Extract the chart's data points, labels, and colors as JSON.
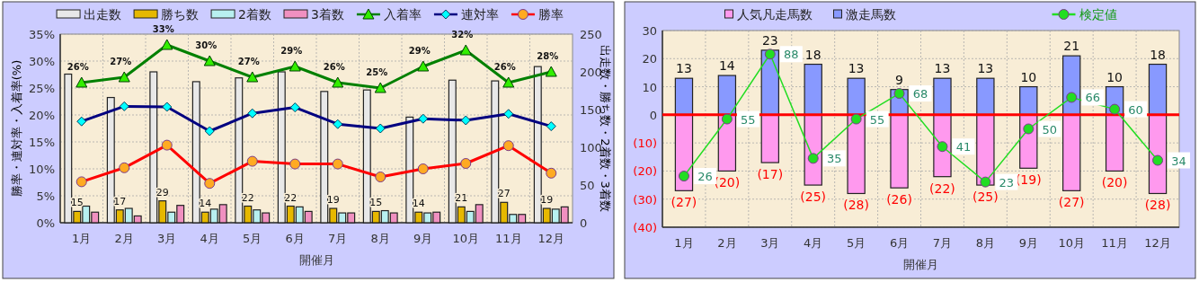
{
  "chart_data": [
    {
      "type": "bar",
      "categories": [
        "1月",
        "2月",
        "3月",
        "4月",
        "5月",
        "6月",
        "7月",
        "8月",
        "9月",
        "10月",
        "11月",
        "12月"
      ],
      "xlabel": "開催月",
      "ylabel": "勝率・連対率・入着率(%)",
      "y2label": "出走数・勝ち数・2着数・3着数",
      "ylim": [
        0,
        35
      ],
      "yticks": [
        {
          "value": 0,
          "label": "0%"
        },
        {
          "value": 5,
          "label": "5%"
        },
        {
          "value": 10,
          "label": "10%"
        },
        {
          "value": 15,
          "label": "15%"
        },
        {
          "value": 20,
          "label": "20%"
        },
        {
          "value": 25,
          "label": "25%"
        },
        {
          "value": 30,
          "label": "30%"
        },
        {
          "value": 35,
          "label": "35%"
        }
      ],
      "y2lim": [
        0,
        250
      ],
      "y2ticks": [
        0,
        50,
        100,
        150,
        200,
        250
      ],
      "grid": true,
      "legend": "top",
      "series": [
        {
          "name": "出走数",
          "axis": "y2",
          "color": "#e8e8e8",
          "values": [
            197,
            166,
            200,
            187,
            192,
            200,
            174,
            176,
            140,
            189,
            188,
            207
          ]
        },
        {
          "name": "勝ち数",
          "axis": "y2",
          "color": "#e6b800",
          "values": [
            15,
            17,
            29,
            14,
            22,
            22,
            19,
            15,
            14,
            21,
            27,
            19
          ],
          "value_labels": [
            "15",
            "17",
            "29",
            "14",
            "22",
            "22",
            "19",
            "15",
            "14",
            "21",
            "27",
            "19"
          ]
        },
        {
          "name": "2着数",
          "axis": "y2",
          "color": "#b8f0f0",
          "values": [
            22,
            19,
            14,
            18,
            17,
            21,
            13,
            16,
            13,
            15,
            11,
            18
          ]
        },
        {
          "name": "3着数",
          "axis": "y2",
          "color": "#f090c0",
          "values": [
            14,
            9,
            23,
            24,
            13,
            15,
            13,
            13,
            14,
            24,
            11,
            21
          ]
        },
        {
          "name": "入着率",
          "type": "line",
          "axis": "y",
          "color": "#008000",
          "marker": "triangle",
          "values": [
            26,
            27,
            33,
            30,
            27,
            29,
            26,
            25,
            29,
            32,
            26,
            28
          ],
          "value_labels": [
            "26%",
            "27%",
            "33%",
            "30%",
            "27%",
            "29%",
            "26%",
            "25%",
            "29%",
            "32%",
            "26%",
            "28%"
          ]
        },
        {
          "name": "連対率",
          "type": "line",
          "axis": "y",
          "color": "#000080",
          "marker": "diamond",
          "values": [
            18.8,
            21.6,
            21.5,
            17.0,
            20.3,
            21.4,
            18.3,
            17.5,
            19.3,
            19.0,
            20.2,
            17.9
          ]
        },
        {
          "name": "勝率",
          "type": "line",
          "axis": "y",
          "color": "#ff0000",
          "marker": "circle",
          "values": [
            7.6,
            10.2,
            14.4,
            7.3,
            11.4,
            10.9,
            10.9,
            8.5,
            10.0,
            11.0,
            14.3,
            9.2
          ]
        }
      ]
    },
    {
      "type": "bar",
      "stacked": true,
      "categories": [
        "1月",
        "2月",
        "3月",
        "4月",
        "5月",
        "6月",
        "7月",
        "8月",
        "9月",
        "10月",
        "11月",
        "12月"
      ],
      "xlabel": "開催月",
      "ylim": [
        -40,
        30
      ],
      "yticks": [
        30,
        20,
        10,
        0,
        {
          "value": -10,
          "label": "(10)"
        },
        {
          "value": -20,
          "label": "(20)"
        },
        {
          "value": -30,
          "label": "(30)"
        },
        {
          "value": -40,
          "label": "(40)"
        }
      ],
      "y2lim": [
        0,
        100
      ],
      "grid": true,
      "legend": "top",
      "ref_lines": [
        {
          "axis": "y",
          "value": 0,
          "color": "#ff0000"
        }
      ],
      "series": [
        {
          "name": "人気凡走馬数",
          "color": "#ff99ee",
          "values": [
            -27,
            -20,
            -17,
            -25,
            -28,
            -26,
            -22,
            -25,
            -19,
            -27,
            -20,
            -28
          ],
          "value_labels": [
            "(27)",
            "(20)",
            "(17)",
            "(25)",
            "(28)",
            "(26)",
            "(22)",
            "(25)",
            "(19)",
            "(27)",
            "(20)",
            "(28)"
          ]
        },
        {
          "name": "激走馬数",
          "color": "#8899ff",
          "values": [
            13,
            14,
            23,
            18,
            13,
            9,
            13,
            13,
            10,
            21,
            10,
            18
          ],
          "value_labels": [
            "13",
            "14",
            "23",
            "18",
            "13",
            "9",
            "13",
            "13",
            "10",
            "21",
            "10",
            "18"
          ]
        },
        {
          "name": "検定値",
          "type": "line",
          "axis": "y2",
          "color": "#22dd22",
          "marker": "circle",
          "values": [
            26,
            55,
            88,
            35,
            55,
            68,
            41,
            23,
            50,
            66,
            60,
            34
          ],
          "value_labels": [
            "26",
            "55",
            "88",
            "35",
            "55",
            "68",
            "41",
            "23",
            "50",
            "66",
            "60",
            "34"
          ]
        }
      ]
    }
  ]
}
